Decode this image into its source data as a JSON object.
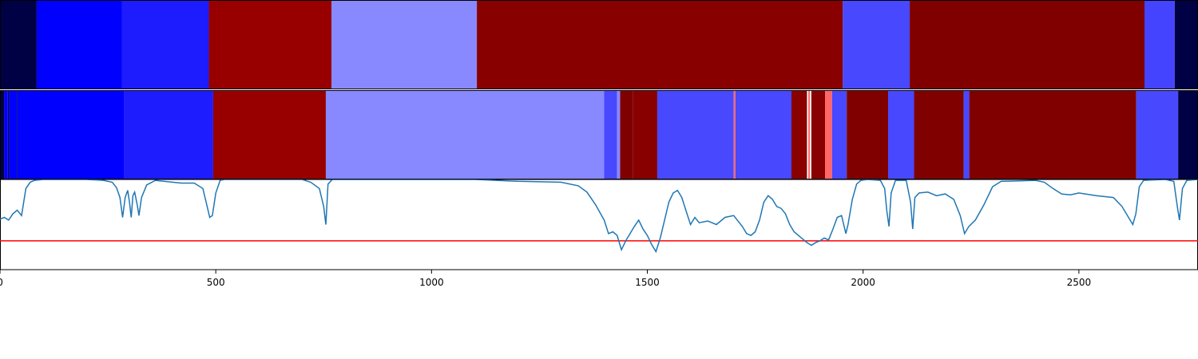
{
  "chart_data": [
    {
      "type": "heatmap",
      "segments": [
        {
          "start": 0,
          "end": 85,
          "color": "#000044"
        },
        {
          "start": 85,
          "end": 283,
          "color": "#0000ff"
        },
        {
          "start": 283,
          "end": 484,
          "color": "#1c1cff"
        },
        {
          "start": 484,
          "end": 768,
          "color": "#980000"
        },
        {
          "start": 768,
          "end": 1105,
          "color": "#8888ff"
        },
        {
          "start": 1105,
          "end": 1953,
          "color": "#880000"
        },
        {
          "start": 1953,
          "end": 2108,
          "color": "#4848ff"
        },
        {
          "start": 2108,
          "end": 2652,
          "color": "#800000"
        },
        {
          "start": 2652,
          "end": 2722,
          "color": "#4444ff"
        },
        {
          "start": 2722,
          "end": 2776,
          "color": "#000044"
        }
      ]
    },
    {
      "type": "heatmap",
      "segments": [
        {
          "start": 0,
          "end": 10,
          "color": "#000044"
        },
        {
          "start": 10,
          "end": 18,
          "color": "#0000ff"
        },
        {
          "start": 18,
          "end": 22,
          "color": "#000088"
        },
        {
          "start": 22,
          "end": 38,
          "color": "#0000ff"
        },
        {
          "start": 38,
          "end": 40,
          "color": "#000088"
        },
        {
          "start": 40,
          "end": 288,
          "color": "#0000ff"
        },
        {
          "start": 288,
          "end": 494,
          "color": "#1c1cff"
        },
        {
          "start": 494,
          "end": 755,
          "color": "#980000"
        },
        {
          "start": 755,
          "end": 1400,
          "color": "#8888ff"
        },
        {
          "start": 1400,
          "end": 1430,
          "color": "#4848ff"
        },
        {
          "start": 1430,
          "end": 1437,
          "color": "#8888ff"
        },
        {
          "start": 1437,
          "end": 1467,
          "color": "#800000"
        },
        {
          "start": 1467,
          "end": 1523,
          "color": "#880000"
        },
        {
          "start": 1523,
          "end": 1700,
          "color": "#4848ff"
        },
        {
          "start": 1700,
          "end": 1704,
          "color": "#ff6666"
        },
        {
          "start": 1704,
          "end": 1834,
          "color": "#4848ff"
        },
        {
          "start": 1834,
          "end": 1870,
          "color": "#880000"
        },
        {
          "start": 1870,
          "end": 1873,
          "color": "#ffffff"
        },
        {
          "start": 1873,
          "end": 1877,
          "color": "#ff6666"
        },
        {
          "start": 1877,
          "end": 1880,
          "color": "#ffffff"
        },
        {
          "start": 1880,
          "end": 1912,
          "color": "#880000"
        },
        {
          "start": 1912,
          "end": 1928,
          "color": "#ff6666"
        },
        {
          "start": 1928,
          "end": 1962,
          "color": "#4848ff"
        },
        {
          "start": 1962,
          "end": 2058,
          "color": "#800000"
        },
        {
          "start": 2058,
          "end": 2118,
          "color": "#4848ff"
        },
        {
          "start": 2118,
          "end": 2233,
          "color": "#800000"
        },
        {
          "start": 2233,
          "end": 2246,
          "color": "#4848ff"
        },
        {
          "start": 2246,
          "end": 2633,
          "color": "#800000"
        },
        {
          "start": 2633,
          "end": 2730,
          "color": "#4848ff"
        },
        {
          "start": 2730,
          "end": 2776,
          "color": "#000044"
        }
      ]
    },
    {
      "type": "line",
      "xlim": [
        0,
        2776
      ],
      "ylim": [
        0,
        1
      ],
      "xticks": [
        {
          "value": 0,
          "label": "0"
        },
        {
          "value": 500,
          "label": "500"
        },
        {
          "value": 1000,
          "label": "1000"
        },
        {
          "value": 1500,
          "label": "1500"
        },
        {
          "value": 2000,
          "label": "2000"
        },
        {
          "value": 2500,
          "label": "2500"
        }
      ],
      "threshold": {
        "y": 0.32,
        "color": "#ff0000"
      },
      "series": [
        {
          "color": "#1f77b4",
          "points": [
            [
              0,
              0.56
            ],
            [
              10,
              0.58
            ],
            [
              20,
              0.55
            ],
            [
              30,
              0.62
            ],
            [
              40,
              0.66
            ],
            [
              50,
              0.6
            ],
            [
              60,
              0.9
            ],
            [
              70,
              0.97
            ],
            [
              80,
              0.99
            ],
            [
              100,
              1.0
            ],
            [
              200,
              1.0
            ],
            [
              240,
              0.99
            ],
            [
              260,
              0.97
            ],
            [
              270,
              0.91
            ],
            [
              278,
              0.8
            ],
            [
              284,
              0.58
            ],
            [
              290,
              0.8
            ],
            [
              296,
              0.88
            ],
            [
              300,
              0.75
            ],
            [
              304,
              0.58
            ],
            [
              308,
              0.82
            ],
            [
              312,
              0.86
            ],
            [
              318,
              0.72
            ],
            [
              322,
              0.6
            ],
            [
              328,
              0.8
            ],
            [
              340,
              0.94
            ],
            [
              360,
              0.99
            ],
            [
              380,
              0.98
            ],
            [
              420,
              0.96
            ],
            [
              450,
              0.96
            ],
            [
              470,
              0.9
            ],
            [
              480,
              0.7
            ],
            [
              486,
              0.58
            ],
            [
              492,
              0.6
            ],
            [
              500,
              0.85
            ],
            [
              510,
              0.99
            ],
            [
              520,
              1.0
            ],
            [
              600,
              1.0
            ],
            [
              700,
              1.0
            ],
            [
              720,
              0.97
            ],
            [
              740,
              0.9
            ],
            [
              750,
              0.7
            ],
            [
              755,
              0.5
            ],
            [
              760,
              0.95
            ],
            [
              770,
              1.0
            ],
            [
              900,
              1.0
            ],
            [
              1100,
              1.0
            ],
            [
              1200,
              0.98
            ],
            [
              1300,
              0.97
            ],
            [
              1340,
              0.93
            ],
            [
              1360,
              0.86
            ],
            [
              1380,
              0.72
            ],
            [
              1400,
              0.55
            ],
            [
              1410,
              0.4
            ],
            [
              1420,
              0.42
            ],
            [
              1430,
              0.38
            ],
            [
              1440,
              0.22
            ],
            [
              1450,
              0.32
            ],
            [
              1460,
              0.4
            ],
            [
              1470,
              0.48
            ],
            [
              1480,
              0.55
            ],
            [
              1490,
              0.45
            ],
            [
              1500,
              0.38
            ],
            [
              1510,
              0.28
            ],
            [
              1520,
              0.2
            ],
            [
              1530,
              0.35
            ],
            [
              1540,
              0.55
            ],
            [
              1550,
              0.75
            ],
            [
              1560,
              0.85
            ],
            [
              1570,
              0.88
            ],
            [
              1580,
              0.8
            ],
            [
              1590,
              0.65
            ],
            [
              1600,
              0.5
            ],
            [
              1610,
              0.58
            ],
            [
              1620,
              0.52
            ],
            [
              1640,
              0.54
            ],
            [
              1660,
              0.5
            ],
            [
              1680,
              0.58
            ],
            [
              1700,
              0.6
            ],
            [
              1720,
              0.48
            ],
            [
              1730,
              0.4
            ],
            [
              1740,
              0.38
            ],
            [
              1750,
              0.42
            ],
            [
              1760,
              0.55
            ],
            [
              1770,
              0.75
            ],
            [
              1780,
              0.82
            ],
            [
              1790,
              0.78
            ],
            [
              1800,
              0.7
            ],
            [
              1810,
              0.68
            ],
            [
              1820,
              0.62
            ],
            [
              1830,
              0.5
            ],
            [
              1840,
              0.42
            ],
            [
              1850,
              0.38
            ],
            [
              1860,
              0.34
            ],
            [
              1870,
              0.3
            ],
            [
              1880,
              0.27
            ],
            [
              1890,
              0.3
            ],
            [
              1900,
              0.32
            ],
            [
              1910,
              0.35
            ],
            [
              1920,
              0.33
            ],
            [
              1930,
              0.45
            ],
            [
              1940,
              0.58
            ],
            [
              1950,
              0.6
            ],
            [
              1960,
              0.4
            ],
            [
              1965,
              0.5
            ],
            [
              1975,
              0.78
            ],
            [
              1985,
              0.95
            ],
            [
              1995,
              0.99
            ],
            [
              2010,
              1.0
            ],
            [
              2040,
              0.99
            ],
            [
              2050,
              0.9
            ],
            [
              2055,
              0.65
            ],
            [
              2060,
              0.48
            ],
            [
              2065,
              0.85
            ],
            [
              2075,
              0.99
            ],
            [
              2100,
              0.99
            ],
            [
              2110,
              0.75
            ],
            [
              2115,
              0.45
            ],
            [
              2120,
              0.8
            ],
            [
              2130,
              0.85
            ],
            [
              2150,
              0.86
            ],
            [
              2170,
              0.82
            ],
            [
              2190,
              0.84
            ],
            [
              2210,
              0.78
            ],
            [
              2225,
              0.6
            ],
            [
              2235,
              0.4
            ],
            [
              2245,
              0.48
            ],
            [
              2260,
              0.55
            ],
            [
              2280,
              0.72
            ],
            [
              2300,
              0.92
            ],
            [
              2320,
              0.98
            ],
            [
              2400,
              0.99
            ],
            [
              2420,
              0.97
            ],
            [
              2440,
              0.9
            ],
            [
              2460,
              0.84
            ],
            [
              2480,
              0.83
            ],
            [
              2500,
              0.85
            ],
            [
              2540,
              0.82
            ],
            [
              2580,
              0.8
            ],
            [
              2600,
              0.7
            ],
            [
              2615,
              0.58
            ],
            [
              2625,
              0.5
            ],
            [
              2632,
              0.62
            ],
            [
              2640,
              0.92
            ],
            [
              2650,
              0.99
            ],
            [
              2700,
              1.0
            ],
            [
              2720,
              0.98
            ],
            [
              2728,
              0.7
            ],
            [
              2733,
              0.55
            ],
            [
              2740,
              0.9
            ],
            [
              2750,
              0.99
            ],
            [
              2776,
              1.0
            ]
          ]
        }
      ]
    }
  ]
}
